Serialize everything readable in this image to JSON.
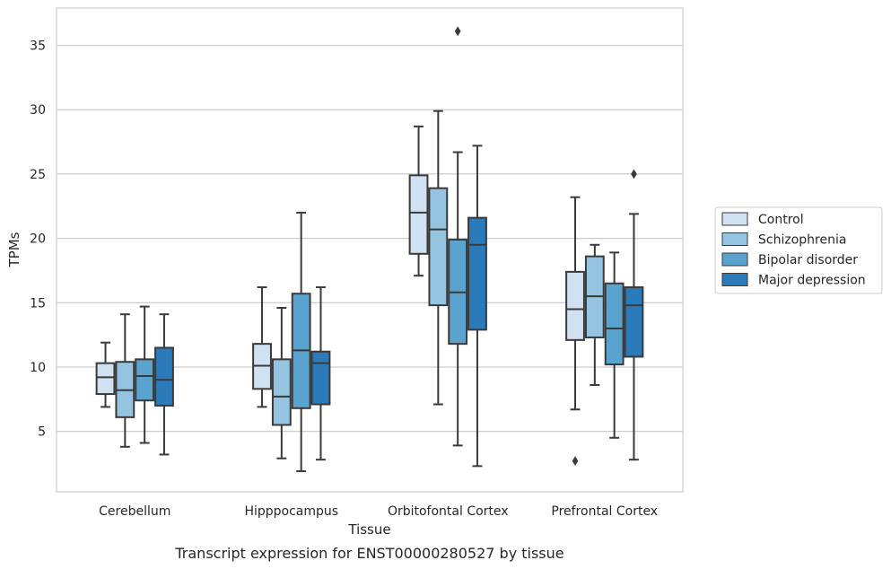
{
  "chart_data": {
    "type": "box",
    "caption": "Transcript expression for ENST00000280527 by tissue",
    "xlabel": "Tissue",
    "ylabel": "TPMs",
    "ylim": [
      0.3,
      37.9
    ],
    "yticks": [
      5,
      10,
      15,
      20,
      25,
      30,
      35
    ],
    "grid": "horizontal",
    "legend_position": "right",
    "categories": [
      "Cerebellum",
      "Hipppocampus",
      "Orbitofontal Cortex",
      "Prefrontal Cortex"
    ],
    "series": [
      {
        "name": "Control",
        "color": "#d0e1f2",
        "boxes": [
          {
            "whislo": 6.9,
            "q1": 7.9,
            "med": 9.2,
            "q3": 10.3,
            "whishi": 11.9,
            "fliers": []
          },
          {
            "whislo": 6.9,
            "q1": 8.3,
            "med": 10.1,
            "q3": 11.8,
            "whishi": 16.2,
            "fliers": []
          },
          {
            "whislo": 17.1,
            "q1": 18.8,
            "med": 22.0,
            "q3": 24.9,
            "whishi": 28.7,
            "fliers": []
          },
          {
            "whislo": 6.7,
            "q1": 12.1,
            "med": 14.5,
            "q3": 17.4,
            "whishi": 23.2,
            "fliers": [
              2.7
            ]
          }
        ]
      },
      {
        "name": "Schizophrenia",
        "color": "#94c4df",
        "boxes": [
          {
            "whislo": 3.8,
            "q1": 6.1,
            "med": 8.2,
            "q3": 10.4,
            "whishi": 14.1,
            "fliers": []
          },
          {
            "whislo": 2.9,
            "q1": 5.5,
            "med": 7.7,
            "q3": 10.6,
            "whishi": 14.6,
            "fliers": []
          },
          {
            "whislo": 7.1,
            "q1": 14.8,
            "med": 20.7,
            "q3": 23.9,
            "whishi": 29.9,
            "fliers": []
          },
          {
            "whislo": 8.6,
            "q1": 12.3,
            "med": 15.5,
            "q3": 18.6,
            "whishi": 19.5,
            "fliers": []
          }
        ]
      },
      {
        "name": "Bipolar disorder",
        "color": "#5ba3cf",
        "boxes": [
          {
            "whislo": 4.1,
            "q1": 7.4,
            "med": 9.3,
            "q3": 10.6,
            "whishi": 14.7,
            "fliers": []
          },
          {
            "whislo": 1.9,
            "q1": 6.8,
            "med": 11.3,
            "q3": 15.7,
            "whishi": 22.0,
            "fliers": []
          },
          {
            "whislo": 3.9,
            "q1": 11.8,
            "med": 15.8,
            "q3": 19.9,
            "whishi": 26.7,
            "fliers": [
              36.1
            ]
          },
          {
            "whislo": 4.5,
            "q1": 10.2,
            "med": 13.0,
            "q3": 16.5,
            "whishi": 18.9,
            "fliers": []
          }
        ]
      },
      {
        "name": "Major depression",
        "color": "#2b7bba",
        "boxes": [
          {
            "whislo": 3.2,
            "q1": 7.0,
            "med": 9.0,
            "q3": 11.5,
            "whishi": 14.1,
            "fliers": []
          },
          {
            "whislo": 2.8,
            "q1": 7.1,
            "med": 10.3,
            "q3": 11.2,
            "whishi": 16.2,
            "fliers": []
          },
          {
            "whislo": 2.3,
            "q1": 12.9,
            "med": 19.5,
            "q3": 21.6,
            "whishi": 27.2,
            "fliers": []
          },
          {
            "whislo": 2.8,
            "q1": 10.8,
            "med": 14.8,
            "q3": 16.2,
            "whishi": 21.9,
            "fliers": [
              25.0
            ]
          }
        ]
      }
    ]
  }
}
